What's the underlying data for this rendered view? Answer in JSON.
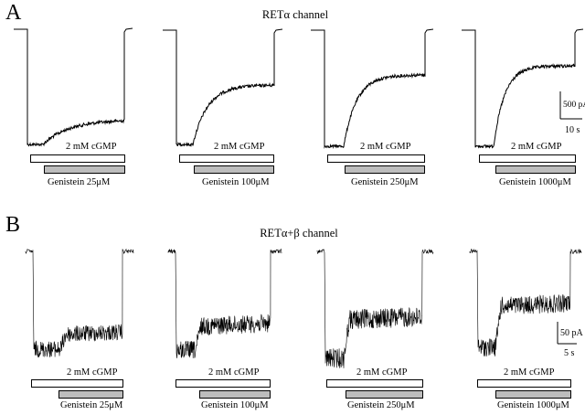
{
  "panelA": {
    "letter": "A",
    "title": "RETα channel",
    "cgmp_label": "2 mM cGMP",
    "genistein_labels": [
      "Genistein 25μM",
      "Genistein 100μM",
      "Genistein 250μM",
      "Genistein 1000μM"
    ],
    "scale": {
      "y_label": "500 pA",
      "x_label": "10 s"
    }
  },
  "panelB": {
    "letter": "B",
    "title": "RETα+β channel",
    "cgmp_label": "2 mM cGMP",
    "genistein_labels": [
      "Genistein 25μM",
      "Genistein 100μM",
      "Genistein 250μM",
      "Genistein 1000μM"
    ],
    "scale": {
      "y_label": "50 pA",
      "x_label": "5 s"
    }
  },
  "colors": {
    "trace": "#000000",
    "genistein_bar": "#bdbdbd",
    "cgmp_bar": "#ffffff"
  }
}
